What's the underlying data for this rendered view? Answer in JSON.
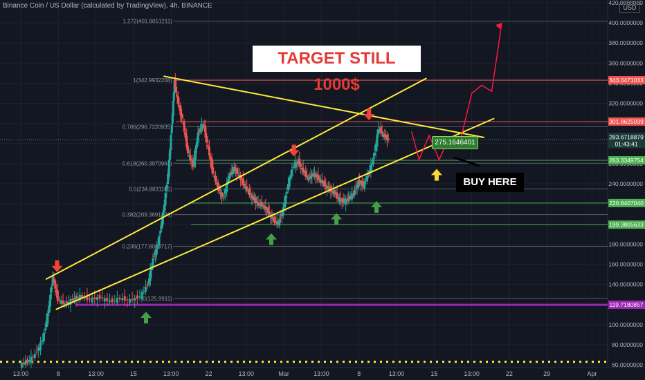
{
  "header": {
    "title": "Binance Coin / US Dollar (calculated by TradingView), 4h, BINANCE",
    "currency": "USD"
  },
  "annotations": {
    "target_text": "TARGET STILL 1000$",
    "buy_text": "BUY HERE",
    "price_callout": "275.1646401"
  },
  "colors": {
    "background": "#131722",
    "candle_up": "#26a69a",
    "candle_down": "#ef5350",
    "trendline": "#ffeb3b",
    "resistance": "#ef5350",
    "support": "#4caf50",
    "purple_level": "#9c27b0",
    "projection": "#ff1744"
  },
  "chart_data": {
    "type": "candlestick",
    "symbol": "BNBUSD",
    "interval": "4h",
    "exchange": "BINANCE",
    "ylim": [
      60,
      420
    ],
    "y_ticks": [
      60,
      80,
      100,
      120,
      140,
      160,
      180,
      200,
      220,
      240,
      260,
      280,
      300,
      320,
      340,
      360,
      380,
      400,
      420
    ],
    "y_tick_labels": [
      "60.0000000",
      "80.0000000",
      "100.0000000",
      "120.0000000",
      "140.0000000",
      "160.0000000",
      "180.0000000",
      "200.0000000",
      "220.0000000",
      "240.0000000",
      "260.0000000",
      "280.0000000",
      "300.0000000",
      "320.0000000",
      "340.0000000",
      "360.0000000",
      "380.0000000",
      "400.0000000",
      "420.0000000"
    ],
    "x_ticks": [
      {
        "label": "13:00",
        "day": 0
      },
      {
        "label": "8",
        "day": 1.5
      },
      {
        "label": "13:00",
        "day": 3
      },
      {
        "label": "15",
        "day": 4.5
      },
      {
        "label": "13:00",
        "day": 6
      },
      {
        "label": "22",
        "day": 7.5
      },
      {
        "label": "13:00",
        "day": 9
      },
      {
        "label": "Mar",
        "day": 10.5
      },
      {
        "label": "13:00",
        "day": 12
      },
      {
        "label": "8",
        "day": 13.5
      },
      {
        "label": "13:00",
        "day": 15
      },
      {
        "label": "15",
        "day": 16.5
      },
      {
        "label": "13:00",
        "day": 18
      },
      {
        "label": "22",
        "day": 19.5
      },
      {
        "label": "29",
        "day": 21
      },
      {
        "label": "Apr",
        "day": 22.8
      }
    ],
    "fib_levels": [
      {
        "label": "1.272(401.8051211)",
        "value": 401.8051211
      },
      {
        "label": "1(342.9932208)",
        "value": 342.9932208
      },
      {
        "label": "0.786(296.7220935)",
        "value": 296.7220935
      },
      {
        "label": "0.618(260.3970963)",
        "value": 260.3970963
      },
      {
        "label": "0.5(234.8831101)",
        "value": 234.8831101
      },
      {
        "label": "0.382(209.3691240)",
        "value": 209.369124
      },
      {
        "label": "0.236(177.8009717)",
        "value": 177.8009717
      },
      {
        "label": "0(125.9911)",
        "value": 125.9911
      }
    ],
    "horizontal_levels": [
      {
        "label": "343.0471033",
        "value": 343.0471033,
        "color": "#ef5350"
      },
      {
        "label": "301.8625039",
        "value": 301.8625039,
        "color": "#ef5350"
      },
      {
        "label": "263.3349754",
        "value": 263.3349754,
        "color": "#4caf50"
      },
      {
        "label": "220.8407040",
        "value": 220.840704,
        "color": "#4caf50"
      },
      {
        "label": "199.3805633",
        "value": 199.3805633,
        "color": "#4caf50"
      },
      {
        "label": "119.7180857",
        "value": 119.7180857,
        "color": "#9c27b0"
      }
    ],
    "current_price": {
      "label": "283.6718879",
      "countdown": "01:43:41",
      "value": 283.6718879
    },
    "dotted_level": {
      "value": 63
    },
    "trendlines": [
      {
        "name": "descending-resistance",
        "from": [
          5.7,
          347
        ],
        "to": [
          18.5,
          286
        ]
      },
      {
        "name": "channel-upper",
        "from": [
          1.0,
          145
        ],
        "to": [
          16.2,
          345
        ]
      },
      {
        "name": "channel-lower",
        "from": [
          1.4,
          115
        ],
        "to": [
          18.9,
          305
        ]
      }
    ],
    "price_path": [
      [
        0,
        60
      ],
      [
        0.3,
        63
      ],
      [
        0.6,
        70
      ],
      [
        0.9,
        85
      ],
      [
        1.1,
        110
      ],
      [
        1.3,
        148
      ],
      [
        1.5,
        125
      ],
      [
        1.8,
        120
      ],
      [
        2.1,
        125
      ],
      [
        2.4,
        128
      ],
      [
        2.8,
        125
      ],
      [
        3.2,
        127
      ],
      [
        3.6,
        123
      ],
      [
        4.0,
        126
      ],
      [
        4.4,
        124
      ],
      [
        4.8,
        128
      ],
      [
        5.1,
        140
      ],
      [
        5.3,
        165
      ],
      [
        5.5,
        180
      ],
      [
        5.7,
        210
      ],
      [
        5.9,
        250
      ],
      [
        6.05,
        300
      ],
      [
        6.15,
        342
      ],
      [
        6.3,
        320
      ],
      [
        6.5,
        300
      ],
      [
        6.7,
        270
      ],
      [
        6.9,
        258
      ],
      [
        7.1,
        290
      ],
      [
        7.3,
        300
      ],
      [
        7.5,
        275
      ],
      [
        7.7,
        250
      ],
      [
        7.9,
        235
      ],
      [
        8.1,
        225
      ],
      [
        8.3,
        245
      ],
      [
        8.5,
        255
      ],
      [
        8.7,
        250
      ],
      [
        8.9,
        240
      ],
      [
        9.1,
        232
      ],
      [
        9.3,
        225
      ],
      [
        9.5,
        220
      ],
      [
        9.7,
        218
      ],
      [
        9.9,
        212
      ],
      [
        10.1,
        204
      ],
      [
        10.3,
        200
      ],
      [
        10.5,
        215
      ],
      [
        10.7,
        240
      ],
      [
        10.9,
        258
      ],
      [
        11.1,
        262
      ],
      [
        11.3,
        252
      ],
      [
        11.5,
        245
      ],
      [
        11.7,
        250
      ],
      [
        11.9,
        245
      ],
      [
        12.1,
        240
      ],
      [
        12.3,
        235
      ],
      [
        12.5,
        232
      ],
      [
        12.7,
        225
      ],
      [
        12.9,
        222
      ],
      [
        13.1,
        225
      ],
      [
        13.3,
        230
      ],
      [
        13.5,
        242
      ],
      [
        13.7,
        238
      ],
      [
        13.9,
        250
      ],
      [
        14.1,
        265
      ],
      [
        14.3,
        295
      ],
      [
        14.5,
        288
      ],
      [
        14.7,
        283.67
      ]
    ],
    "projection_path": [
      [
        15.6,
        292
      ],
      [
        15.9,
        264
      ],
      [
        16.3,
        288
      ],
      [
        16.7,
        264
      ],
      [
        17.1,
        286
      ],
      [
        17.5,
        278
      ],
      [
        18.0,
        330
      ],
      [
        18.4,
        338
      ],
      [
        18.8,
        332
      ],
      [
        19.2,
        400
      ]
    ],
    "annotations": [
      {
        "type": "arrow-down",
        "color": "red",
        "at": [
          1.45,
          157
        ]
      },
      {
        "type": "arrow-down",
        "color": "red",
        "at": [
          10.9,
          272
        ]
      },
      {
        "type": "arrow-down",
        "color": "red",
        "at": [
          13.9,
          308
        ]
      },
      {
        "type": "arrow-up",
        "color": "green",
        "at": [
          5.0,
          108
        ]
      },
      {
        "type": "arrow-up",
        "color": "green",
        "at": [
          10.0,
          186
        ]
      },
      {
        "type": "arrow-up",
        "color": "green",
        "at": [
          12.6,
          206
        ]
      },
      {
        "type": "arrow-up",
        "color": "green",
        "at": [
          14.2,
          218
        ]
      },
      {
        "type": "arrow-up",
        "color": "yellow",
        "at": [
          16.6,
          250
        ]
      }
    ]
  }
}
